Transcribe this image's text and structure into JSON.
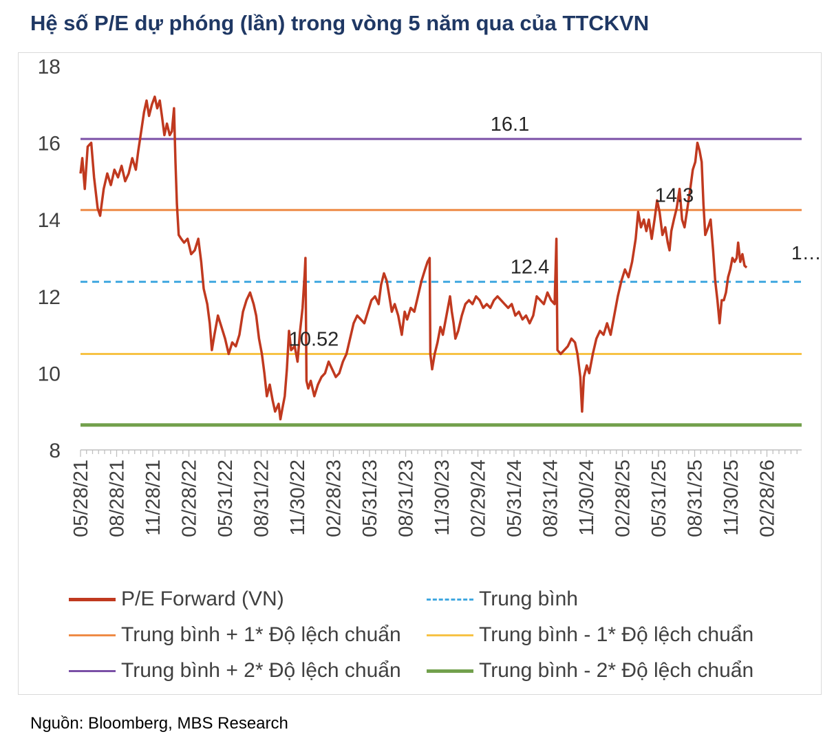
{
  "title": "Hệ số P/E dự phóng (lần) trong vòng 5 năm qua của TTCKVN",
  "source": "Nguồn: Bloomberg, MBS Research",
  "colors": {
    "pe": "#c0391f",
    "mean": "#41a8e0",
    "plus1": "#ee8a45",
    "minus1": "#f7c244",
    "plus2": "#7a4fa6",
    "minus2": "#72a04c",
    "axis": "#bfbfbf",
    "text": "#404040"
  },
  "chart_data": {
    "type": "line",
    "ylim": [
      8,
      18
    ],
    "yticks": [
      8,
      10,
      12,
      14,
      16,
      18
    ],
    "xticks": [
      "05/28/21",
      "08/28/21",
      "11/28/21",
      "02/28/22",
      "05/31/22",
      "08/31/22",
      "11/30/22",
      "02/28/23",
      "05/31/23",
      "08/31/23",
      "11/30/23",
      "02/29/24",
      "05/31/24",
      "08/31/24",
      "11/30/24",
      "02/28/25",
      "05/31/25",
      "08/31/25",
      "11/30/25",
      "02/28/26"
    ],
    "x_range": [
      0,
      20.2
    ],
    "grid": false,
    "legend_position": "bottom",
    "reference_lines": [
      {
        "name": "Trung bình + 2* Độ lệch chuẩn",
        "value": 16.1,
        "label": "16.1",
        "color": "#7a4fa6",
        "style": "solid"
      },
      {
        "name": "Trung bình + 1* Độ lệch chuẩn",
        "value": 14.25,
        "label": "14.3",
        "color": "#ee8a45",
        "style": "solid"
      },
      {
        "name": "Trung bình",
        "value": 12.38,
        "label": "12.4",
        "color": "#41a8e0",
        "style": "dashed"
      },
      {
        "name": "Trung bình - 1* Độ lệch chuẩn",
        "value": 10.5,
        "label": "10.52",
        "color": "#f7c244",
        "style": "solid"
      },
      {
        "name": "Trung bình - 2* Độ lệch chuẩn",
        "value": 8.65,
        "label": "",
        "color": "#72a04c",
        "style": "solid"
      }
    ],
    "end_label": "1…",
    "series": [
      {
        "name": "P/E Forward (VN)",
        "color": "#c0391f",
        "points": [
          [
            0.0,
            15.2
          ],
          [
            0.05,
            15.6
          ],
          [
            0.12,
            14.8
          ],
          [
            0.2,
            15.9
          ],
          [
            0.3,
            16.0
          ],
          [
            0.38,
            15.1
          ],
          [
            0.48,
            14.3
          ],
          [
            0.55,
            14.1
          ],
          [
            0.65,
            14.8
          ],
          [
            0.75,
            15.2
          ],
          [
            0.85,
            14.9
          ],
          [
            0.95,
            15.3
          ],
          [
            1.05,
            15.1
          ],
          [
            1.15,
            15.4
          ],
          [
            1.25,
            15.0
          ],
          [
            1.35,
            15.2
          ],
          [
            1.45,
            15.6
          ],
          [
            1.55,
            15.3
          ],
          [
            1.62,
            15.8
          ],
          [
            1.7,
            16.3
          ],
          [
            1.78,
            16.8
          ],
          [
            1.85,
            17.1
          ],
          [
            1.92,
            16.7
          ],
          [
            2.0,
            17.0
          ],
          [
            2.08,
            17.2
          ],
          [
            2.15,
            16.9
          ],
          [
            2.22,
            17.1
          ],
          [
            2.28,
            16.7
          ],
          [
            2.35,
            16.2
          ],
          [
            2.42,
            16.5
          ],
          [
            2.5,
            16.2
          ],
          [
            2.56,
            16.3
          ],
          [
            2.62,
            16.9
          ],
          [
            2.66,
            15.5
          ],
          [
            2.7,
            14.4
          ],
          [
            2.75,
            13.6
          ],
          [
            2.82,
            13.5
          ],
          [
            2.9,
            13.4
          ],
          [
            3.0,
            13.5
          ],
          [
            3.1,
            13.1
          ],
          [
            3.2,
            13.2
          ],
          [
            3.3,
            13.5
          ],
          [
            3.38,
            12.9
          ],
          [
            3.45,
            12.2
          ],
          [
            3.55,
            11.8
          ],
          [
            3.62,
            11.3
          ],
          [
            3.68,
            10.6
          ],
          [
            3.75,
            11.0
          ],
          [
            3.85,
            11.5
          ],
          [
            3.95,
            11.2
          ],
          [
            4.05,
            10.9
          ],
          [
            4.15,
            10.5
          ],
          [
            4.25,
            10.8
          ],
          [
            4.35,
            10.7
          ],
          [
            4.45,
            11.0
          ],
          [
            4.55,
            11.6
          ],
          [
            4.65,
            11.9
          ],
          [
            4.75,
            12.1
          ],
          [
            4.85,
            11.8
          ],
          [
            4.92,
            11.5
          ],
          [
            5.0,
            10.9
          ],
          [
            5.08,
            10.5
          ],
          [
            5.15,
            10.0
          ],
          [
            5.22,
            9.4
          ],
          [
            5.3,
            9.7
          ],
          [
            5.38,
            9.3
          ],
          [
            5.45,
            9.0
          ],
          [
            5.55,
            9.2
          ],
          [
            5.6,
            8.8
          ],
          [
            5.66,
            9.1
          ],
          [
            5.72,
            9.4
          ],
          [
            5.78,
            10.1
          ],
          [
            5.84,
            11.1
          ],
          [
            5.9,
            10.6
          ],
          [
            6.0,
            10.7
          ],
          [
            6.08,
            10.3
          ],
          [
            6.15,
            11.1
          ],
          [
            6.22,
            11.7
          ],
          [
            6.28,
            12.6
          ],
          [
            6.3,
            13.0
          ],
          [
            6.33,
            9.8
          ],
          [
            6.38,
            9.6
          ],
          [
            6.45,
            9.8
          ],
          [
            6.55,
            9.4
          ],
          [
            6.65,
            9.7
          ],
          [
            6.75,
            9.9
          ],
          [
            6.85,
            10.0
          ],
          [
            6.95,
            10.3
          ],
          [
            7.05,
            10.1
          ],
          [
            7.15,
            9.9
          ],
          [
            7.25,
            10.0
          ],
          [
            7.35,
            10.3
          ],
          [
            7.45,
            10.5
          ],
          [
            7.55,
            10.9
          ],
          [
            7.65,
            11.3
          ],
          [
            7.75,
            11.5
          ],
          [
            7.85,
            11.4
          ],
          [
            7.95,
            11.3
          ],
          [
            8.05,
            11.6
          ],
          [
            8.15,
            11.9
          ],
          [
            8.25,
            12.0
          ],
          [
            8.35,
            11.8
          ],
          [
            8.42,
            12.3
          ],
          [
            8.5,
            12.6
          ],
          [
            8.58,
            12.4
          ],
          [
            8.65,
            12.0
          ],
          [
            8.72,
            11.6
          ],
          [
            8.8,
            11.8
          ],
          [
            8.9,
            11.5
          ],
          [
            9.0,
            11.0
          ],
          [
            9.08,
            11.6
          ],
          [
            9.15,
            11.4
          ],
          [
            9.25,
            11.7
          ],
          [
            9.35,
            11.6
          ],
          [
            9.45,
            12.0
          ],
          [
            9.55,
            12.4
          ],
          [
            9.65,
            12.7
          ],
          [
            9.72,
            12.9
          ],
          [
            9.78,
            13.0
          ],
          [
            9.8,
            10.5
          ],
          [
            9.85,
            10.1
          ],
          [
            9.92,
            10.5
          ],
          [
            10.0,
            10.8
          ],
          [
            10.08,
            11.2
          ],
          [
            10.15,
            11.0
          ],
          [
            10.25,
            11.5
          ],
          [
            10.35,
            12.0
          ],
          [
            10.4,
            11.6
          ],
          [
            10.45,
            11.3
          ],
          [
            10.5,
            10.9
          ],
          [
            10.58,
            11.1
          ],
          [
            10.68,
            11.5
          ],
          [
            10.78,
            11.8
          ],
          [
            10.88,
            11.9
          ],
          [
            10.98,
            11.8
          ],
          [
            11.08,
            12.0
          ],
          [
            11.18,
            11.9
          ],
          [
            11.28,
            11.7
          ],
          [
            11.38,
            11.8
          ],
          [
            11.48,
            11.7
          ],
          [
            11.58,
            11.9
          ],
          [
            11.68,
            12.0
          ],
          [
            11.78,
            11.9
          ],
          [
            11.88,
            11.8
          ],
          [
            11.98,
            11.7
          ],
          [
            12.08,
            11.8
          ],
          [
            12.18,
            11.5
          ],
          [
            12.28,
            11.6
          ],
          [
            12.38,
            11.4
          ],
          [
            12.48,
            11.5
          ],
          [
            12.58,
            11.3
          ],
          [
            12.68,
            11.5
          ],
          [
            12.78,
            12.0
          ],
          [
            12.88,
            11.9
          ],
          [
            12.98,
            11.8
          ],
          [
            13.08,
            12.1
          ],
          [
            13.18,
            11.9
          ],
          [
            13.28,
            11.8
          ],
          [
            13.33,
            13.5
          ],
          [
            13.36,
            10.6
          ],
          [
            13.45,
            10.5
          ],
          [
            13.55,
            10.6
          ],
          [
            13.65,
            10.7
          ],
          [
            13.75,
            10.9
          ],
          [
            13.85,
            10.8
          ],
          [
            13.92,
            10.5
          ],
          [
            14.0,
            9.9
          ],
          [
            14.05,
            9.0
          ],
          [
            14.1,
            9.9
          ],
          [
            14.18,
            10.2
          ],
          [
            14.25,
            10.0
          ],
          [
            14.35,
            10.5
          ],
          [
            14.45,
            10.9
          ],
          [
            14.55,
            11.1
          ],
          [
            14.65,
            11.0
          ],
          [
            14.75,
            11.3
          ],
          [
            14.85,
            11.0
          ],
          [
            14.95,
            11.5
          ],
          [
            15.05,
            12.0
          ],
          [
            15.15,
            12.4
          ],
          [
            15.25,
            12.7
          ],
          [
            15.35,
            12.5
          ],
          [
            15.45,
            12.9
          ],
          [
            15.55,
            13.5
          ],
          [
            15.62,
            14.2
          ],
          [
            15.7,
            13.8
          ],
          [
            15.78,
            14.0
          ],
          [
            15.85,
            13.7
          ],
          [
            15.92,
            14.0
          ],
          [
            16.0,
            13.5
          ],
          [
            16.08,
            14.0
          ],
          [
            16.15,
            14.5
          ],
          [
            16.22,
            14.2
          ],
          [
            16.3,
            13.6
          ],
          [
            16.38,
            13.8
          ],
          [
            16.45,
            13.4
          ],
          [
            16.5,
            13.2
          ],
          [
            16.55,
            13.7
          ],
          [
            16.62,
            14.0
          ],
          [
            16.7,
            14.3
          ],
          [
            16.78,
            14.8
          ],
          [
            16.85,
            14.0
          ],
          [
            16.92,
            13.8
          ],
          [
            17.0,
            14.3
          ],
          [
            17.08,
            14.8
          ],
          [
            17.15,
            15.3
          ],
          [
            17.22,
            15.5
          ],
          [
            17.28,
            16.0
          ],
          [
            17.34,
            15.8
          ],
          [
            17.4,
            15.5
          ],
          [
            17.45,
            14.4
          ],
          [
            17.5,
            13.6
          ],
          [
            17.58,
            13.8
          ],
          [
            17.65,
            14.0
          ],
          [
            17.72,
            13.2
          ],
          [
            17.78,
            12.4
          ],
          [
            17.84,
            11.9
          ],
          [
            17.9,
            11.3
          ],
          [
            17.96,
            11.9
          ],
          [
            18.02,
            11.9
          ],
          [
            18.08,
            12.1
          ],
          [
            18.14,
            12.5
          ],
          [
            18.2,
            12.7
          ],
          [
            18.26,
            13.0
          ],
          [
            18.32,
            12.9
          ],
          [
            18.38,
            13.0
          ],
          [
            18.42,
            13.4
          ],
          [
            18.48,
            12.9
          ],
          [
            18.54,
            13.1
          ],
          [
            18.6,
            12.8
          ],
          [
            18.66,
            12.75
          ]
        ]
      }
    ]
  },
  "legend": [
    {
      "label": "P/E Forward (VN)",
      "color": "#c0391f",
      "style": "solid-thick"
    },
    {
      "label": "Trung bình",
      "color": "#41a8e0",
      "style": "dashed"
    },
    {
      "label": "Trung bình + 1* Độ lệch chuẩn",
      "color": "#ee8a45",
      "style": "solid"
    },
    {
      "label": "Trung bình - 1* Độ lệch chuẩn",
      "color": "#f7c244",
      "style": "solid"
    },
    {
      "label": "Trung bình + 2* Độ lệch chuẩn",
      "color": "#7a4fa6",
      "style": "solid"
    },
    {
      "label": "Trung bình - 2* Độ lệch chuẩn",
      "color": "#72a04c",
      "style": "solid-thick"
    }
  ]
}
